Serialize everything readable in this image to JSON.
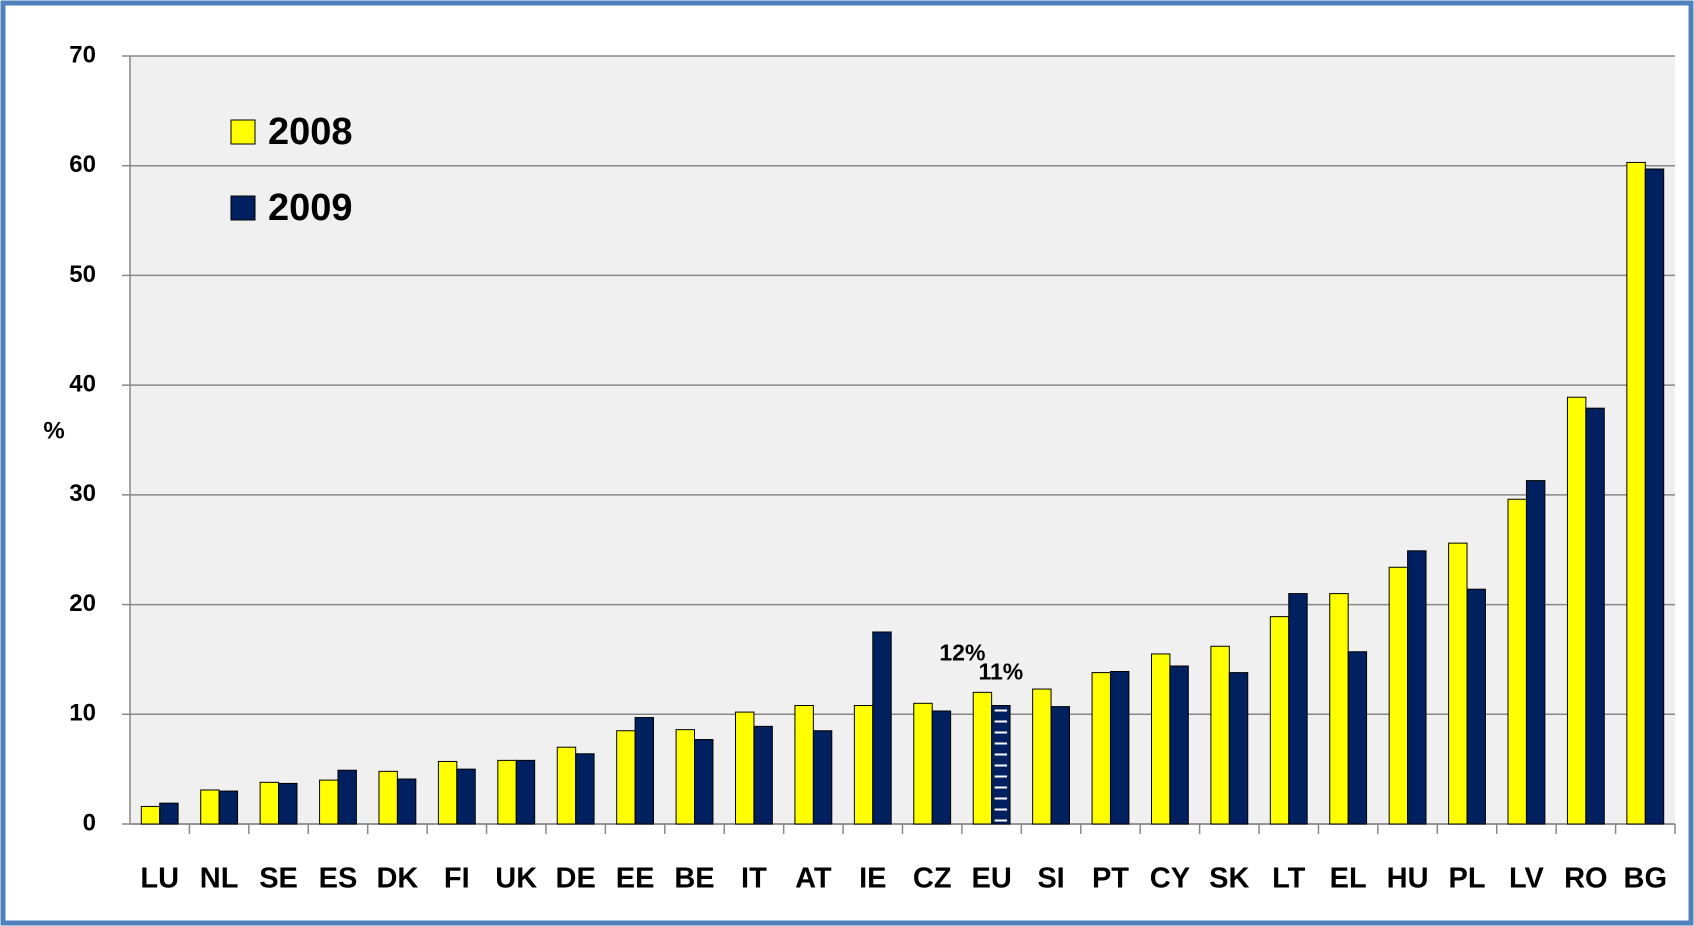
{
  "chart_data": {
    "type": "bar",
    "y_label": "%",
    "categories": [
      "LU",
      "NL",
      "SE",
      "ES",
      "DK",
      "FI",
      "UK",
      "DE",
      "EE",
      "BE",
      "IT",
      "AT",
      "IE",
      "CZ",
      "EU",
      "SI",
      "PT",
      "CY",
      "SK",
      "LT",
      "EL",
      "HU",
      "PL",
      "LV",
      "RO",
      "BG"
    ],
    "series": [
      {
        "name": "2008",
        "color": "#ffff00",
        "values": [
          1.6,
          3.1,
          3.8,
          4.0,
          4.8,
          5.7,
          5.8,
          7.0,
          8.5,
          8.6,
          10.2,
          10.8,
          10.8,
          11.0,
          12.0,
          12.3,
          13.8,
          15.5,
          16.2,
          18.9,
          21.0,
          23.4,
          25.6,
          29.6,
          38.9,
          60.3
        ],
        "value_labels": [
          null,
          null,
          null,
          null,
          null,
          null,
          null,
          null,
          null,
          null,
          null,
          null,
          null,
          null,
          "12%",
          null,
          null,
          null,
          null,
          null,
          null,
          null,
          null,
          null,
          null,
          null
        ]
      },
      {
        "name": "2009",
        "color": "#002060",
        "values": [
          1.9,
          3.0,
          3.7,
          4.9,
          4.1,
          5.0,
          5.8,
          6.4,
          9.7,
          7.7,
          8.9,
          8.5,
          17.5,
          10.3,
          10.8,
          10.7,
          13.9,
          14.4,
          13.8,
          21.0,
          15.7,
          24.9,
          21.4,
          31.3,
          37.9,
          59.7
        ],
        "value_labels": [
          null,
          null,
          null,
          null,
          null,
          null,
          null,
          null,
          null,
          null,
          null,
          null,
          null,
          null,
          "11%",
          null,
          null,
          null,
          null,
          null,
          null,
          null,
          null,
          null,
          null,
          null
        ]
      }
    ],
    "ylim": [
      0,
      70
    ],
    "yticks": [
      0,
      10,
      20,
      30,
      40,
      50,
      60,
      70
    ],
    "grid": true,
    "legend": "upper left"
  }
}
